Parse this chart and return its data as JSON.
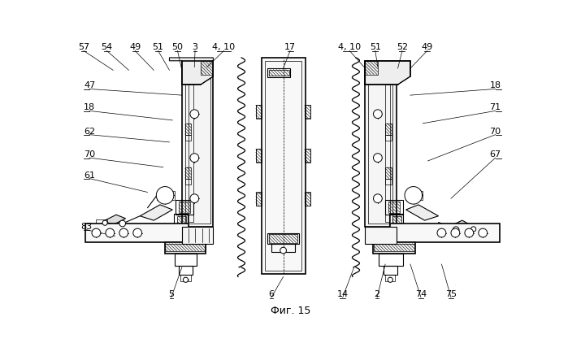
{
  "title": "Фиг. 15",
  "bg_color": "#ffffff",
  "fig_width": 6.99,
  "fig_height": 4.39,
  "dpi": 100,
  "top_labels": [
    [
      "57",
      18,
      17
    ],
    [
      "54",
      55,
      17
    ],
    [
      "49",
      100,
      17
    ],
    [
      "51",
      135,
      17
    ],
    [
      "50",
      168,
      17
    ],
    [
      "3",
      196,
      17
    ],
    [
      "4, 10",
      242,
      17
    ],
    [
      "17",
      348,
      17
    ],
    [
      "4, 10",
      443,
      17
    ],
    [
      "51",
      482,
      17
    ],
    [
      "52",
      525,
      17
    ],
    [
      "49",
      567,
      17
    ]
  ],
  "left_labels": [
    [
      "47",
      18,
      75
    ],
    [
      "18",
      18,
      110
    ],
    [
      "62",
      18,
      148
    ],
    [
      "70",
      18,
      185
    ],
    [
      "61",
      18,
      218
    ]
  ],
  "right_labels": [
    [
      "18",
      685,
      75
    ],
    [
      "71",
      685,
      110
    ],
    [
      "70",
      685,
      148
    ],
    [
      "67",
      685,
      185
    ]
  ],
  "bottom_labels": [
    [
      "83",
      25,
      300
    ],
    [
      "5",
      158,
      408
    ],
    [
      "6",
      318,
      408
    ],
    [
      "14",
      435,
      408
    ],
    [
      "2",
      487,
      408
    ],
    [
      "74",
      557,
      408
    ],
    [
      "75",
      605,
      408
    ]
  ]
}
